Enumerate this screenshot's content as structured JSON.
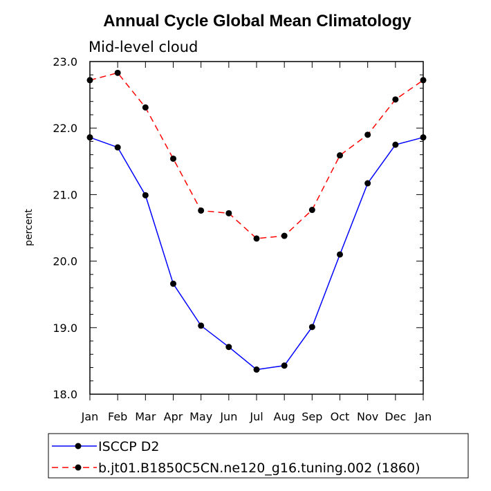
{
  "chart_data": {
    "type": "line",
    "title": "Annual Cycle Global Mean Climatology",
    "subtitle": "Mid-level cloud",
    "ylabel": "percent",
    "xlabel": "",
    "categories": [
      "Jan",
      "Feb",
      "Mar",
      "Apr",
      "May",
      "Jun",
      "Jul",
      "Aug",
      "Sep",
      "Oct",
      "Nov",
      "Dec",
      "Jan"
    ],
    "ylim": [
      18.0,
      23.0
    ],
    "yticks": [
      18.0,
      19.0,
      20.0,
      21.0,
      22.0,
      23.0
    ],
    "ytick_labels": [
      "18.0",
      "19.0",
      "20.0",
      "21.0",
      "22.0",
      "23.0"
    ],
    "series": [
      {
        "name": "ISCCP D2",
        "color": "#0000ff",
        "dash": "solid",
        "values": [
          21.86,
          21.71,
          20.99,
          19.66,
          19.03,
          18.71,
          18.37,
          18.43,
          19.01,
          20.1,
          21.17,
          21.75,
          21.86
        ]
      },
      {
        "name": "b.jt01.B1850C5CN.ne120_g16.tuning.002 (1860)",
        "color": "#ff0000",
        "dash": "dashed",
        "values": [
          22.72,
          22.83,
          22.31,
          21.54,
          20.76,
          20.72,
          20.34,
          20.38,
          20.77,
          21.59,
          21.9,
          22.43,
          22.72
        ]
      }
    ]
  }
}
